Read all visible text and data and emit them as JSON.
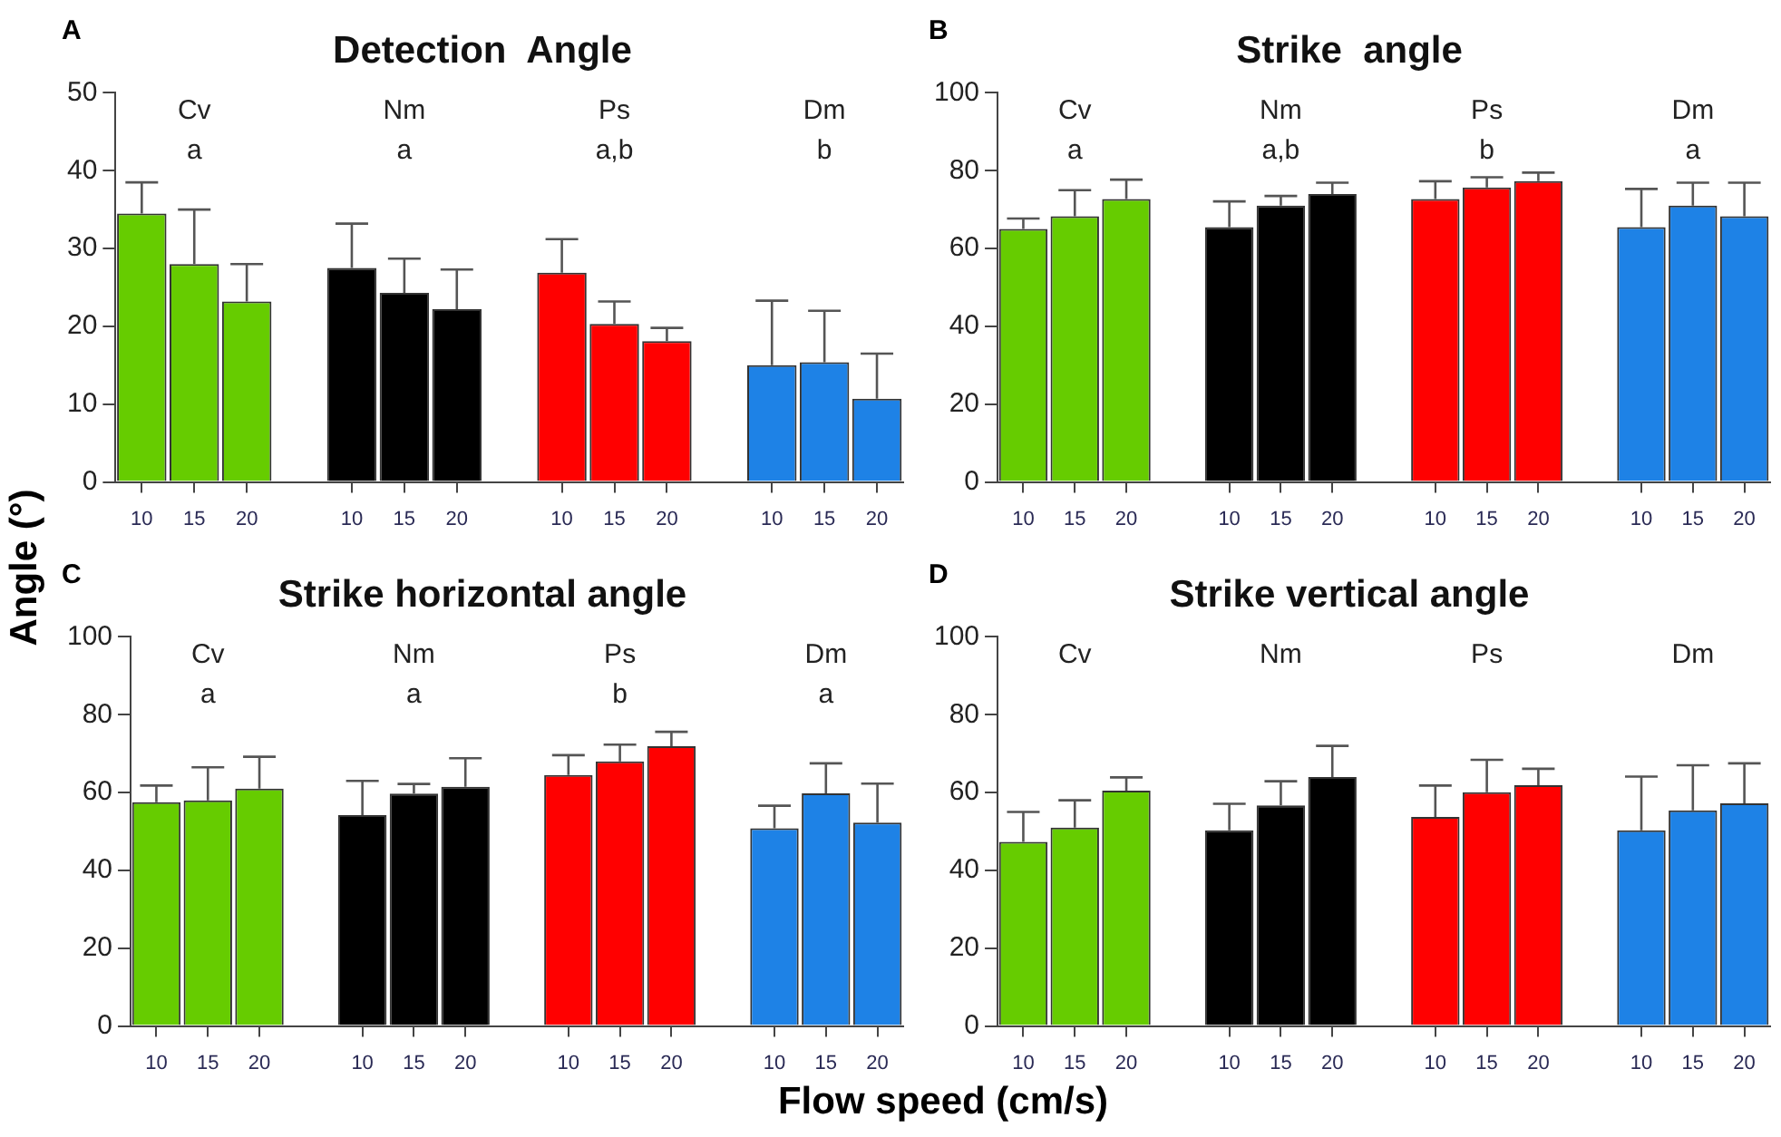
{
  "chart_data": [
    {
      "type": "bar",
      "title": "Detection  Angle",
      "subtitle": "A",
      "ylabel": "Angle (°)",
      "categories": [
        "10",
        "15",
        "20",
        null,
        "10",
        "15",
        "20",
        null,
        "10",
        "15",
        "20",
        null,
        "10",
        "15",
        "20"
      ],
      "values": [
        34.5,
        28,
        23.2,
        null,
        27.5,
        24.3,
        22.2,
        null,
        26.9,
        20.3,
        18.1,
        null,
        15,
        15.4,
        10.7
      ],
      "errors": [
        [
          34.5,
          38.5
        ],
        [
          28,
          35
        ],
        [
          23.2,
          28
        ],
        null,
        [
          27.5,
          33.2
        ],
        [
          24.3,
          28.7
        ],
        [
          22.2,
          27.3
        ],
        null,
        [
          26.9,
          31.2
        ],
        [
          20.3,
          23.2
        ],
        [
          18.1,
          19.8
        ],
        null,
        [
          15,
          23.3
        ],
        [
          15.4,
          22
        ],
        [
          10.7,
          16.5
        ]
      ],
      "colors": [
        "#66cc00",
        "#66cc00",
        "#66cc00",
        "#ffffff",
        "#000000",
        "#000000",
        "#000000",
        "#ffffff",
        "#ff0000",
        "#ff0000",
        "#ff0000",
        "#ffffff",
        "#1e82e6",
        "#1e82e6",
        "#1e82e6"
      ],
      "ylim": [
        0,
        50
      ],
      "yticks": [
        0,
        10,
        20,
        30,
        40,
        50
      ],
      "annotations": [
        "Cv",
        "Nm",
        "Ps",
        "Dm",
        "a",
        "a",
        "a,b",
        "b"
      ]
    },
    {
      "type": "bar",
      "title": "Strike  angle",
      "subtitle": "B",
      "categories": [
        "10",
        "15",
        "20",
        null,
        "10",
        "15",
        "20",
        null,
        "10",
        "15",
        "20",
        null,
        "10",
        "15",
        "20"
      ],
      "values": [
        65,
        68.3,
        72.7,
        null,
        65.5,
        71,
        74,
        null,
        72.7,
        75.7,
        77.3,
        null,
        65.5,
        71,
        68.3
      ],
      "errors": [
        [
          65,
          67.7
        ],
        [
          68.3,
          75
        ],
        [
          72.7,
          77.7
        ],
        null,
        [
          65.5,
          72.1
        ],
        [
          71,
          73.5
        ],
        [
          74,
          76.9
        ],
        null,
        [
          72.7,
          77.3
        ],
        [
          75.7,
          78.3
        ],
        [
          77.3,
          79.5
        ],
        null,
        [
          65.5,
          75.3
        ],
        [
          71,
          76.9
        ],
        [
          68.3,
          76.9
        ]
      ],
      "colors": [
        "#66cc00",
        "#66cc00",
        "#66cc00",
        "#ffffff",
        "#000000",
        "#000000",
        "#000000",
        "#ffffff",
        "#ff0000",
        "#ff0000",
        "#ff0000",
        "#ffffff",
        "#1e82e6",
        "#1e82e6",
        "#1e82e6"
      ],
      "ylim": [
        0,
        100
      ],
      "yticks": [
        0,
        20,
        40,
        60,
        80,
        100
      ],
      "annotations": [
        "Cv",
        "Nm",
        "Ps",
        "Dm",
        "a",
        "a,b",
        "b",
        "a"
      ]
    },
    {
      "type": "bar",
      "title": "Strike horizontal angle",
      "subtitle": "C",
      "xlabel": "Flow speed (cm/s)",
      "categories": [
        "10",
        "15",
        "20",
        null,
        "10",
        "15",
        "20",
        null,
        "10",
        "15",
        "20",
        null,
        "10",
        "15",
        "20"
      ],
      "values": [
        57.5,
        58,
        61,
        null,
        54.2,
        59.7,
        61.5,
        null,
        64.5,
        68,
        71.9,
        null,
        50.8,
        59.8,
        52.3
      ],
      "errors": [
        [
          57.5,
          61.8
        ],
        [
          58,
          66.5
        ],
        [
          61,
          69.2
        ],
        null,
        [
          54.2,
          63
        ],
        [
          59.7,
          62.2
        ],
        [
          61.5,
          68.8
        ],
        null,
        [
          64.5,
          69.6
        ],
        [
          68,
          72.3
        ],
        [
          71.9,
          75.6
        ],
        null,
        [
          50.8,
          56.6
        ],
        [
          59.8,
          67.5
        ],
        [
          52.3,
          62.3
        ]
      ],
      "colors": [
        "#66cc00",
        "#66cc00",
        "#66cc00",
        "#ffffff",
        "#000000",
        "#000000",
        "#000000",
        "#ffffff",
        "#ff0000",
        "#ff0000",
        "#ff0000",
        "#ffffff",
        "#1e82e6",
        "#1e82e6",
        "#1e82e6"
      ],
      "ylim": [
        0,
        100
      ],
      "yticks": [
        0,
        20,
        40,
        60,
        80,
        100
      ],
      "annotations": [
        "Cv",
        "Nm",
        "Ps",
        "Dm",
        "a",
        "a",
        "b",
        "a"
      ]
    },
    {
      "type": "bar",
      "title": "Strike vertical angle",
      "subtitle": "D",
      "categories": [
        "10",
        "15",
        "20",
        null,
        "10",
        "15",
        "20",
        null,
        "10",
        "15",
        "20",
        null,
        "10",
        "15",
        "20"
      ],
      "values": [
        47.3,
        51,
        60.5,
        null,
        50.3,
        56.7,
        64,
        null,
        53.7,
        60.1,
        61.9,
        null,
        50.3,
        55.4,
        57.2
      ],
      "errors": [
        [
          47.3,
          55
        ],
        [
          51,
          58
        ],
        [
          60.5,
          63.9
        ],
        null,
        [
          50.3,
          57.1
        ],
        [
          56.7,
          62.9
        ],
        [
          64,
          72
        ],
        null,
        [
          53.7,
          61.8
        ],
        [
          60.1,
          68.4
        ],
        [
          61.9,
          66.1
        ],
        null,
        [
          50.3,
          64.1
        ],
        [
          55.4,
          67
        ],
        [
          57.2,
          67.5
        ]
      ],
      "colors": [
        "#66cc00",
        "#66cc00",
        "#66cc00",
        "#ffffff",
        "#000000",
        "#000000",
        "#000000",
        "#ffffff",
        "#ff0000",
        "#ff0000",
        "#ff0000",
        "#ffffff",
        "#1e82e6",
        "#1e82e6",
        "#1e82e6"
      ],
      "ylim": [
        0,
        100
      ],
      "yticks": [
        0,
        20,
        40,
        60,
        80,
        100
      ],
      "annotations": [
        "Cv",
        "Nm",
        "Ps",
        "Dm"
      ]
    }
  ]
}
